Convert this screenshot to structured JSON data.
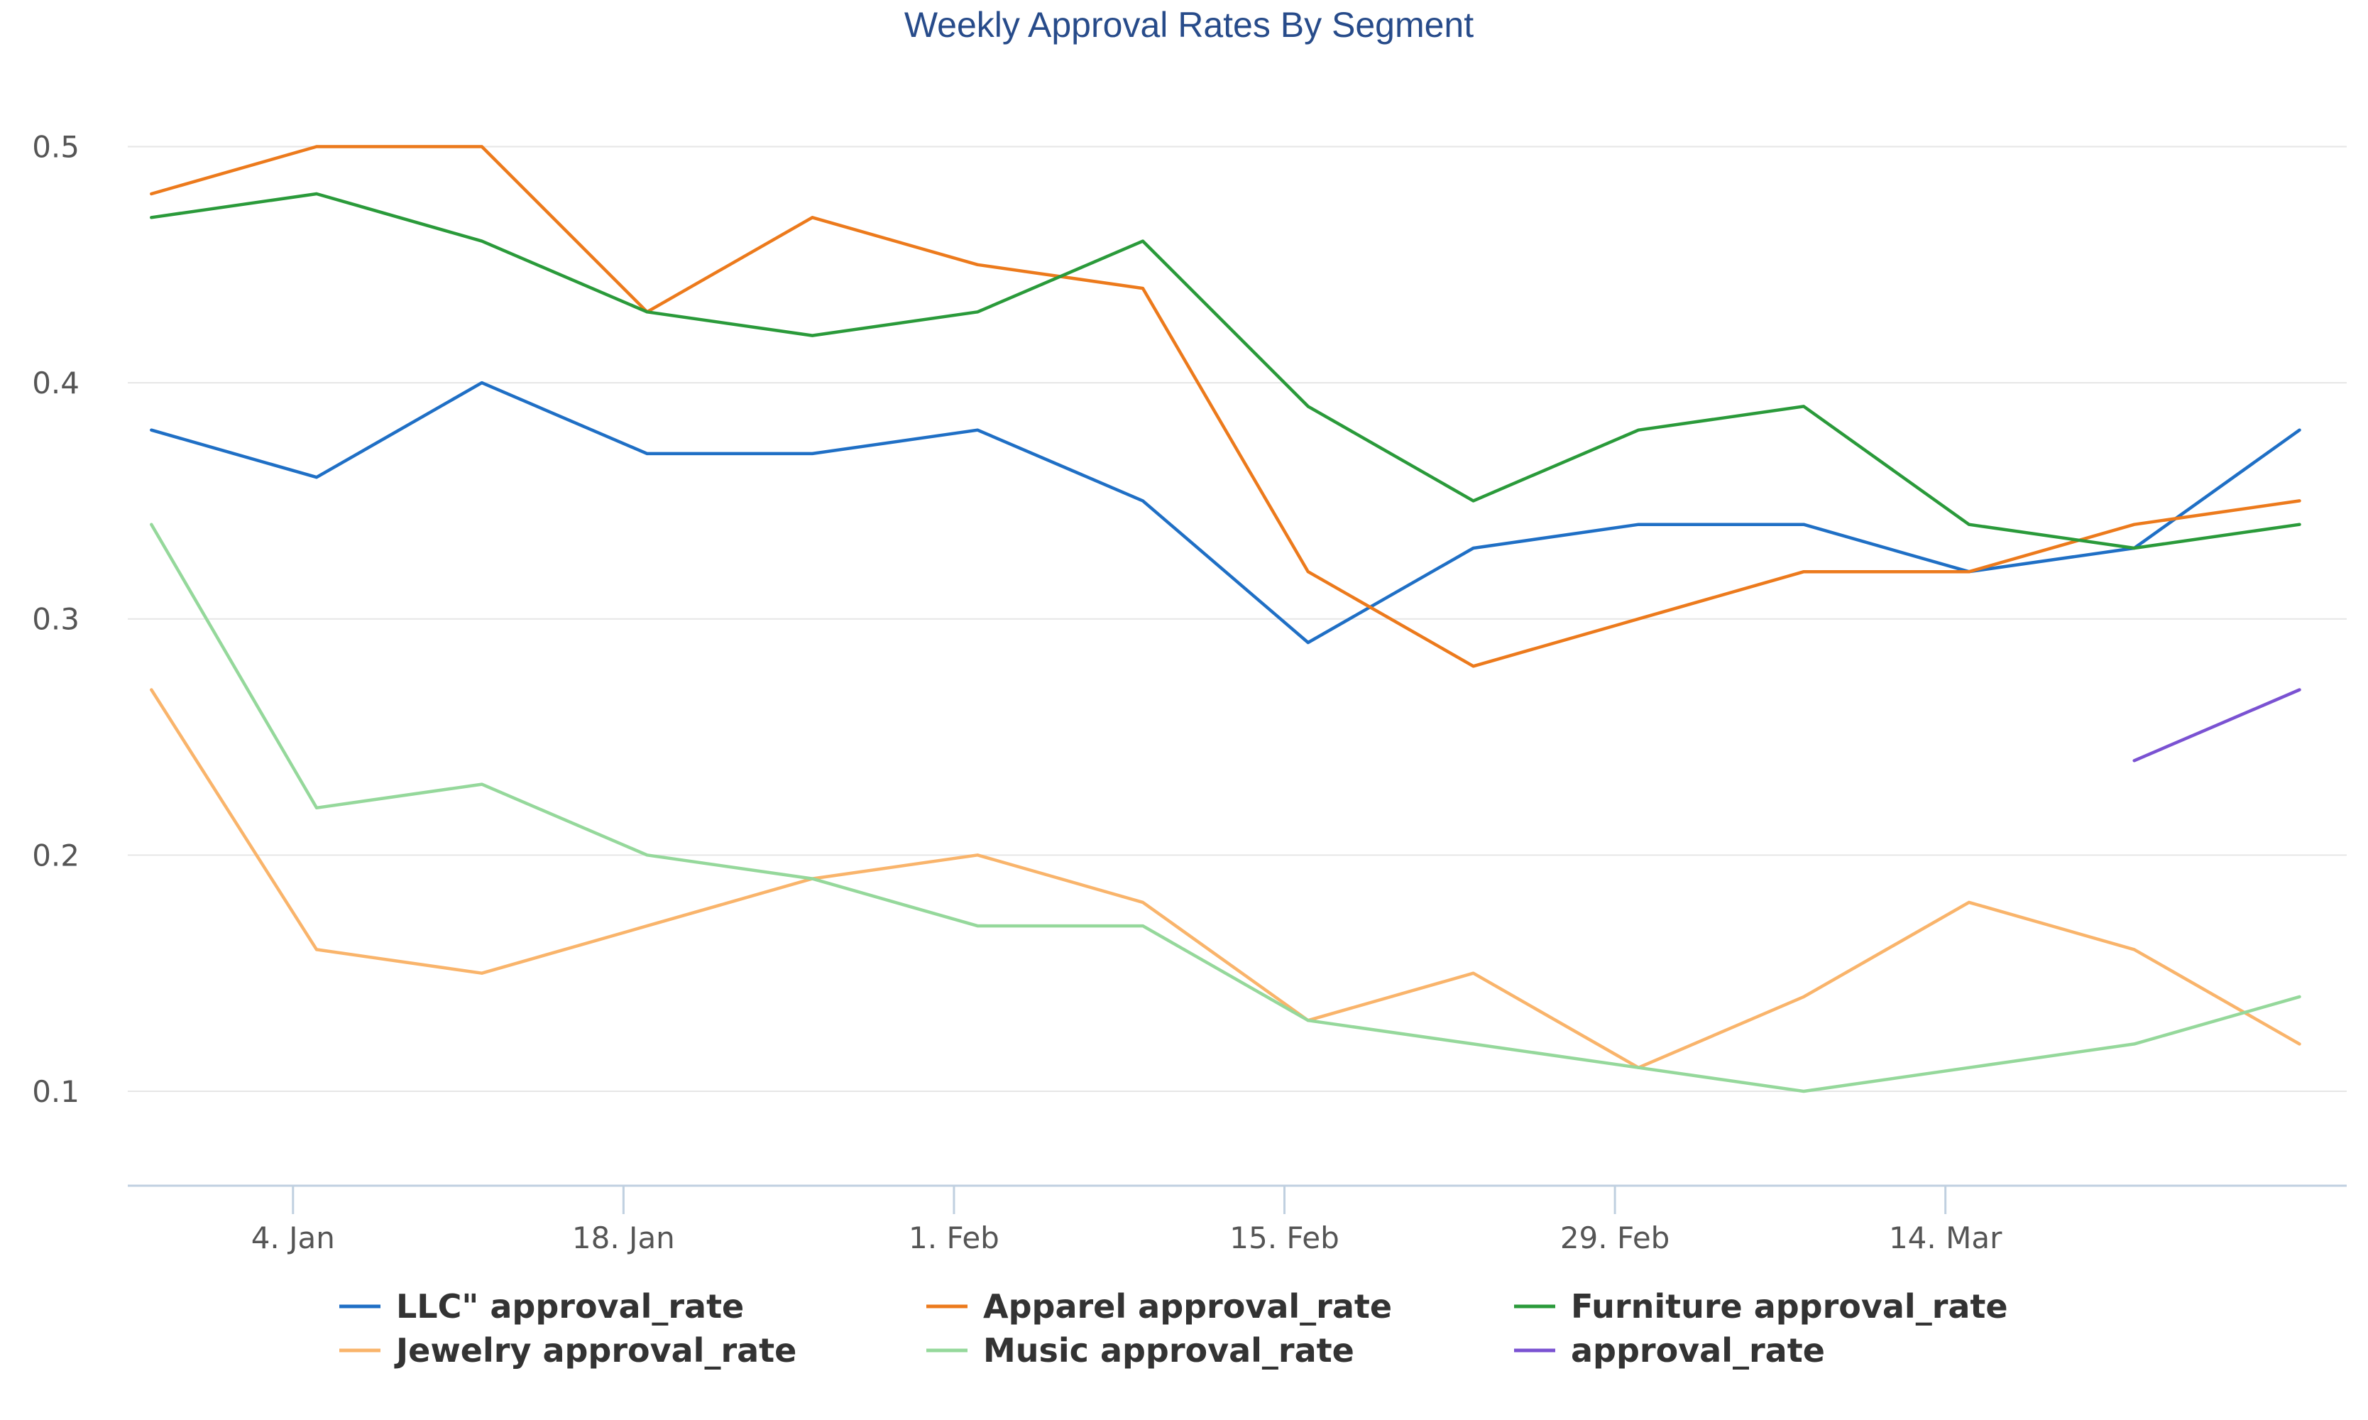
{
  "chart_data": {
    "type": "line",
    "title": "Weekly Approval Rates By Segment",
    "xlabel": "",
    "ylabel": "",
    "ylim": [
      0.06,
      0.52
    ],
    "yticks": [
      {
        "value": 0.1,
        "label": "0.1"
      },
      {
        "value": 0.2,
        "label": "0.2"
      },
      {
        "value": 0.3,
        "label": "0.3"
      },
      {
        "value": 0.4,
        "label": "0.4"
      },
      {
        "value": 0.5,
        "label": "0.5"
      }
    ],
    "xlim": [
      "2023-12-28",
      "2024-03-31"
    ],
    "xticks": [
      {
        "date": "2024-01-04",
        "label": "4. Jan"
      },
      {
        "date": "2024-01-18",
        "label": "18. Jan"
      },
      {
        "date": "2024-02-01",
        "label": "1. Feb"
      },
      {
        "date": "2024-02-15",
        "label": "15. Feb"
      },
      {
        "date": "2024-02-29",
        "label": "29. Feb"
      },
      {
        "date": "2024-03-14",
        "label": "14. Mar"
      }
    ],
    "grid": true,
    "legend_position": "bottom",
    "x": [
      "2023-12-29",
      "2024-01-05",
      "2024-01-12",
      "2024-01-19",
      "2024-01-26",
      "2024-02-02",
      "2024-02-09",
      "2024-02-16",
      "2024-02-23",
      "2024-03-01",
      "2024-03-08",
      "2024-03-15",
      "2024-03-22",
      "2024-03-29"
    ],
    "series": [
      {
        "name": "LLC\" approval_rate",
        "color": "#1f6fc5",
        "values": [
          0.38,
          0.36,
          0.4,
          0.37,
          0.37,
          0.38,
          0.35,
          0.29,
          0.33,
          0.34,
          0.34,
          0.32,
          0.33,
          0.38
        ]
      },
      {
        "name": "Apparel approval_rate",
        "color": "#ec7a1c",
        "values": [
          0.48,
          0.5,
          0.5,
          0.43,
          0.47,
          0.45,
          0.44,
          0.32,
          0.28,
          0.3,
          0.32,
          0.32,
          0.34,
          0.35
        ]
      },
      {
        "name": "Furniture approval_rate",
        "color": "#2a9a3a",
        "values": [
          0.47,
          0.48,
          0.46,
          0.43,
          0.42,
          0.43,
          0.46,
          0.39,
          0.35,
          0.38,
          0.39,
          0.34,
          0.33,
          0.34
        ]
      },
      {
        "name": "Jewelry approval_rate",
        "color": "#f9b46b",
        "values": [
          0.27,
          0.16,
          0.15,
          0.17,
          0.19,
          0.2,
          0.18,
          0.13,
          0.15,
          0.11,
          0.14,
          0.18,
          0.16,
          0.12
        ]
      },
      {
        "name": "Music approval_rate",
        "color": "#95d89b",
        "values": [
          0.34,
          0.22,
          0.23,
          0.2,
          0.19,
          0.17,
          0.17,
          0.13,
          0.12,
          0.11,
          0.1,
          0.11,
          0.12,
          0.14
        ]
      },
      {
        "name": "approval_rate",
        "color": "#7a52d2",
        "values": [
          null,
          null,
          null,
          null,
          null,
          null,
          null,
          null,
          null,
          null,
          null,
          null,
          0.24,
          0.27
        ]
      }
    ]
  }
}
